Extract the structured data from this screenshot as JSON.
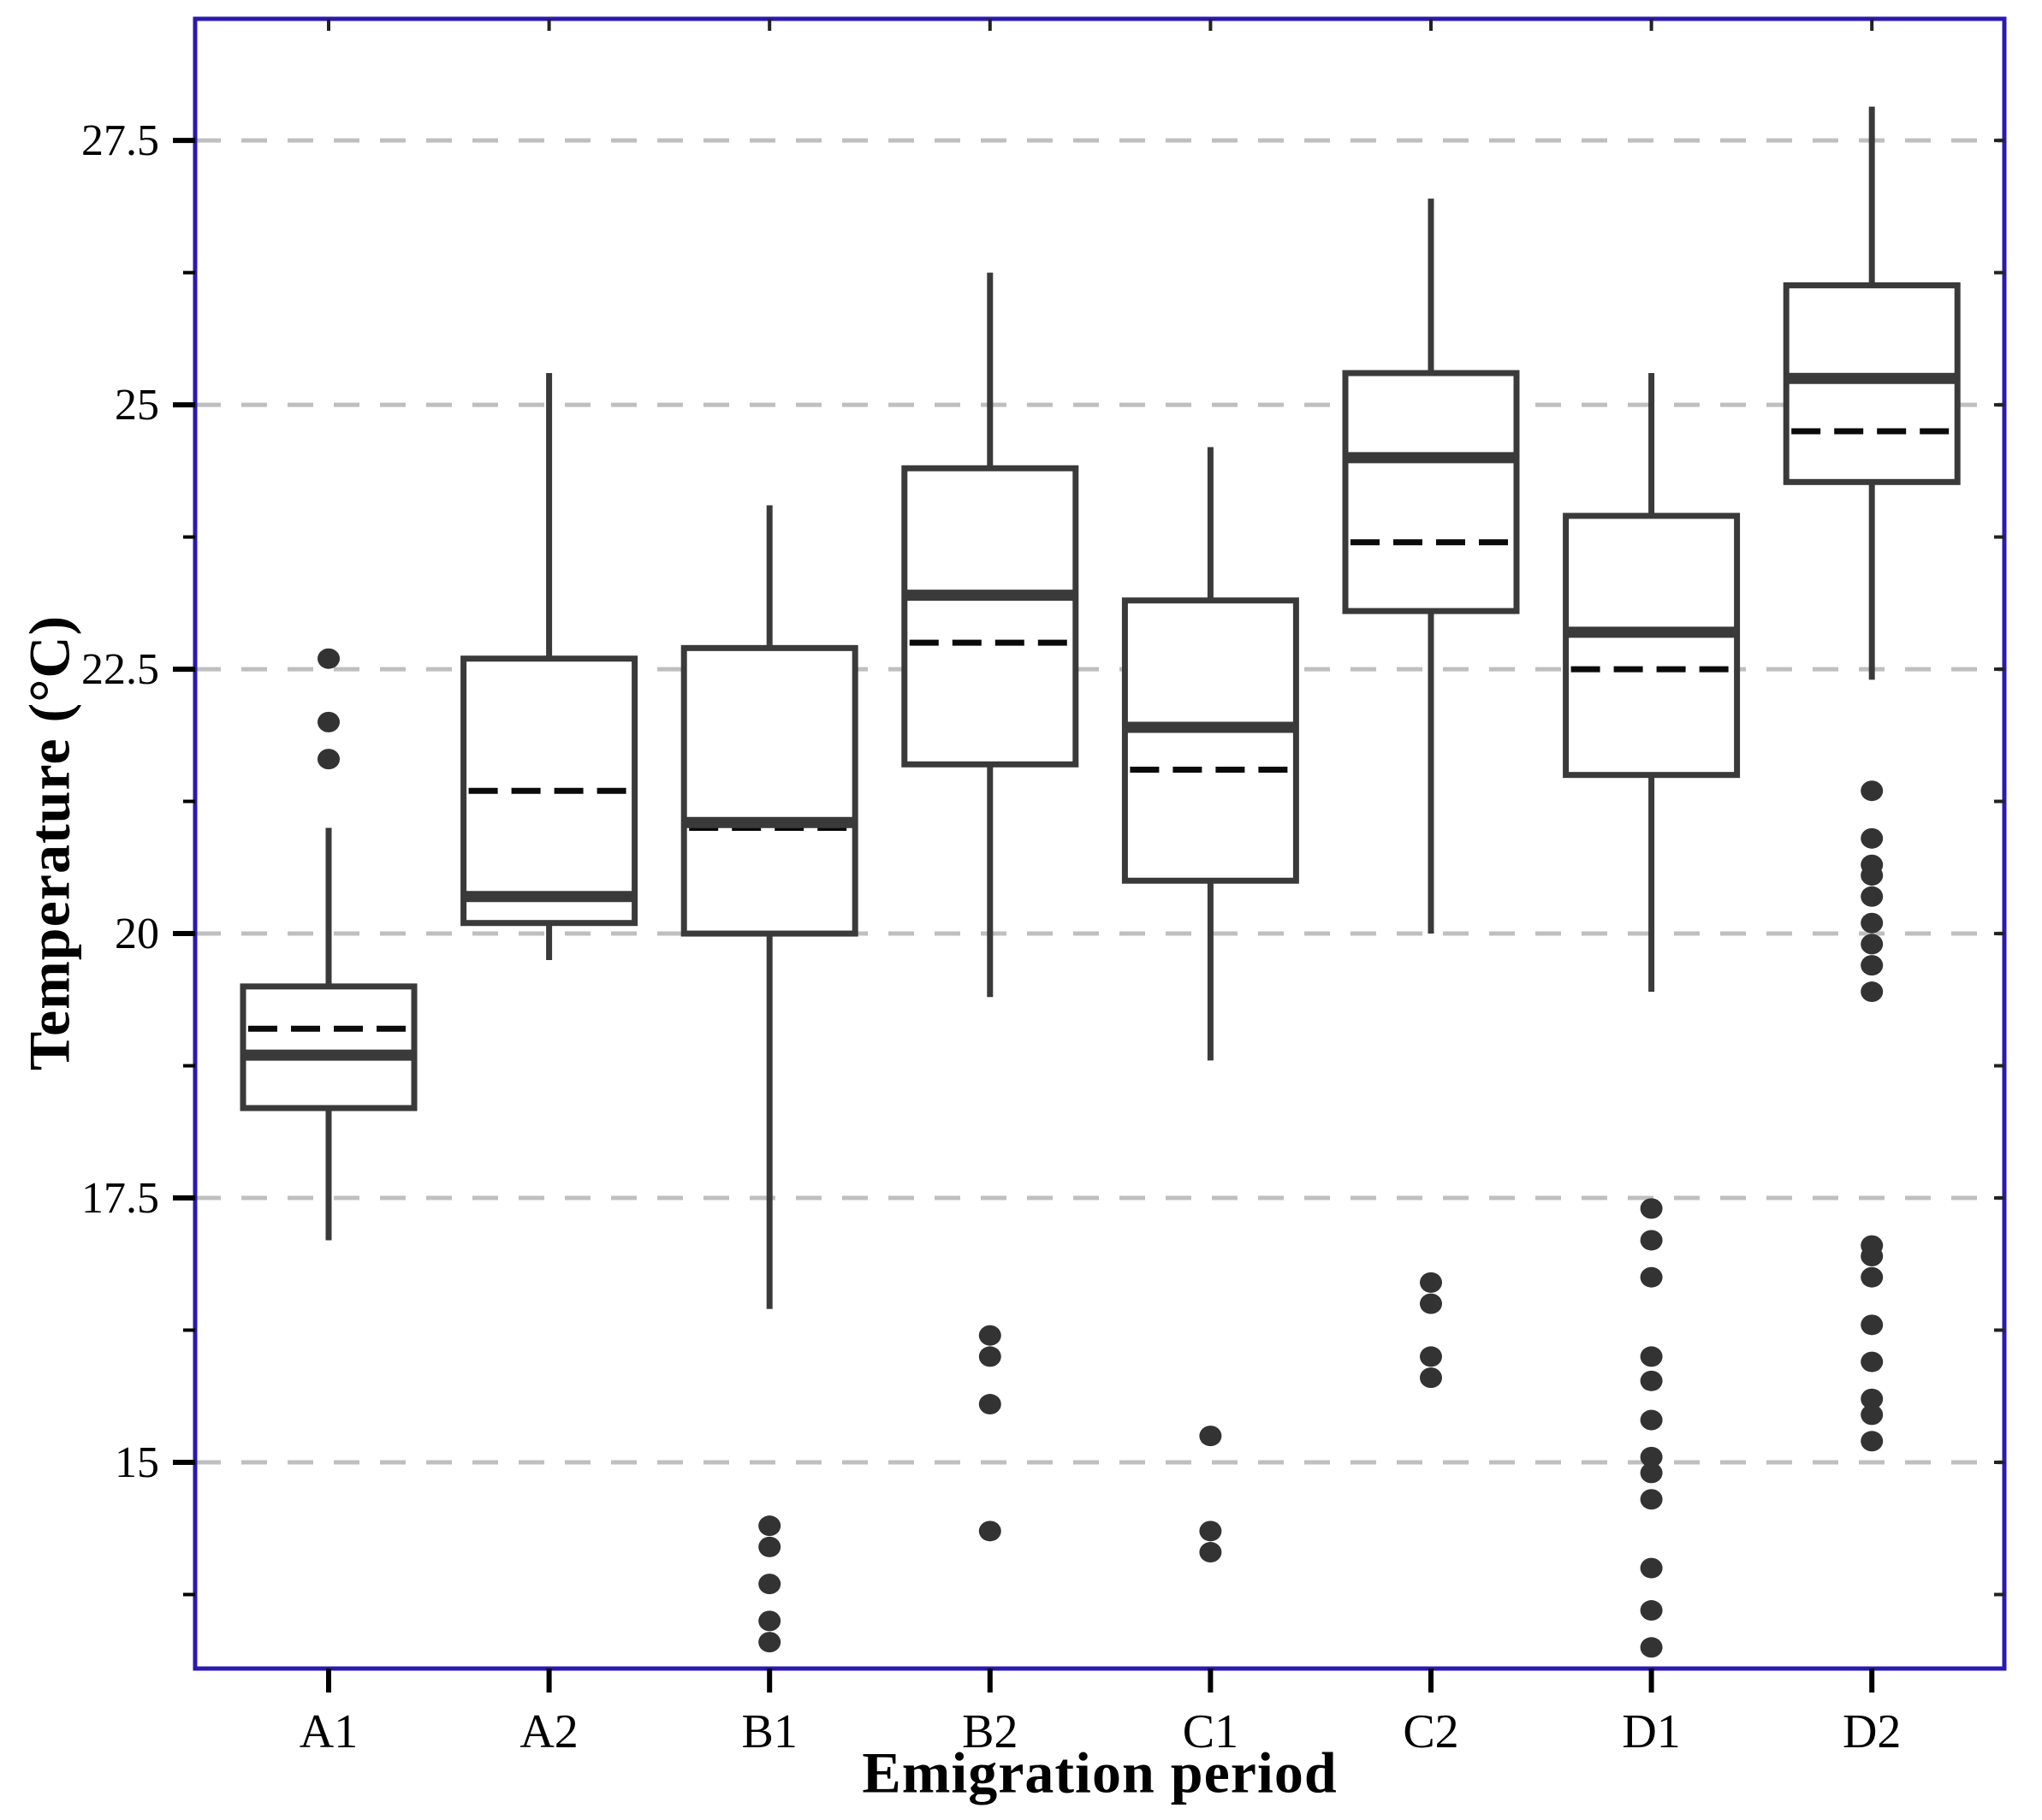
{
  "colors": {
    "plot_border": "#2a1aad",
    "gridline": "#bfbfbf",
    "box_line": "#3a3a3a",
    "outlier_dot": "#333333",
    "text": "#000000",
    "background": "#ffffff"
  },
  "chart_data": {
    "type": "box",
    "title": "",
    "xlabel": "Emigration period",
    "ylabel": "Temperature (°C)",
    "ylim": [
      13.05,
      28.65
    ],
    "y_ticks": [
      15,
      17.5,
      20,
      22.5,
      25,
      27.5
    ],
    "y_minor_ticks": [
      13.75,
      16.25,
      18.75,
      21.25,
      23.75,
      26.25
    ],
    "grid": "horizontal dashed lines at major y ticks",
    "legend_position": "none",
    "categories": [
      "A1",
      "A2",
      "B1",
      "B2",
      "C1",
      "C2",
      "D1",
      "D2"
    ],
    "encoding": {
      "thick_solid_line": "median",
      "dashed_line": "mean",
      "dots": "outliers"
    },
    "series": [
      {
        "category": "A1",
        "whisker_low": 17.1,
        "q1": 18.35,
        "median": 18.85,
        "mean": 19.1,
        "q3": 19.5,
        "whisker_high": 21.0,
        "outliers": [
          21.65,
          22.0,
          22.6
        ]
      },
      {
        "category": "A2",
        "whisker_low": 19.75,
        "q1": 20.1,
        "median": 20.35,
        "mean": 21.35,
        "q3": 22.6,
        "whisker_high": 25.3,
        "outliers": []
      },
      {
        "category": "B1",
        "whisker_low": 16.45,
        "q1": 20.0,
        "median": 21.05,
        "mean": 21.0,
        "q3": 22.7,
        "whisker_high": 24.05,
        "outliers": [
          14.4,
          14.2,
          13.85,
          13.5,
          13.3
        ]
      },
      {
        "category": "B2",
        "whisker_low": 19.4,
        "q1": 21.6,
        "median": 23.2,
        "mean": 22.75,
        "q3": 24.4,
        "whisker_high": 26.25,
        "outliers": [
          16.2,
          16.0,
          15.55,
          14.35
        ]
      },
      {
        "category": "C1",
        "whisker_low": 18.8,
        "q1": 20.5,
        "median": 21.95,
        "mean": 21.55,
        "q3": 23.15,
        "whisker_high": 24.6,
        "outliers": [
          15.25,
          14.35,
          14.15
        ]
      },
      {
        "category": "C2",
        "whisker_low": 20.0,
        "q1": 23.05,
        "median": 24.5,
        "mean": 23.7,
        "q3": 25.3,
        "whisker_high": 26.95,
        "outliers": [
          16.7,
          16.5,
          16.0,
          15.8
        ]
      },
      {
        "category": "D1",
        "whisker_low": 19.45,
        "q1": 21.5,
        "median": 22.85,
        "mean": 22.5,
        "q3": 23.95,
        "whisker_high": 25.3,
        "outliers": [
          17.4,
          17.1,
          16.75,
          16.0,
          15.77,
          15.4,
          15.05,
          14.9,
          14.65,
          14.0,
          13.6,
          13.25
        ]
      },
      {
        "category": "D2",
        "whisker_low": 22.4,
        "q1": 24.27,
        "median": 25.25,
        "mean": 24.75,
        "q3": 26.13,
        "whisker_high": 27.82,
        "outliers": [
          21.35,
          20.9,
          20.65,
          20.55,
          20.35,
          20.1,
          19.9,
          19.7,
          19.45,
          17.05,
          16.95,
          16.75,
          16.3,
          15.95,
          15.6,
          15.45,
          15.2
        ]
      }
    ]
  }
}
